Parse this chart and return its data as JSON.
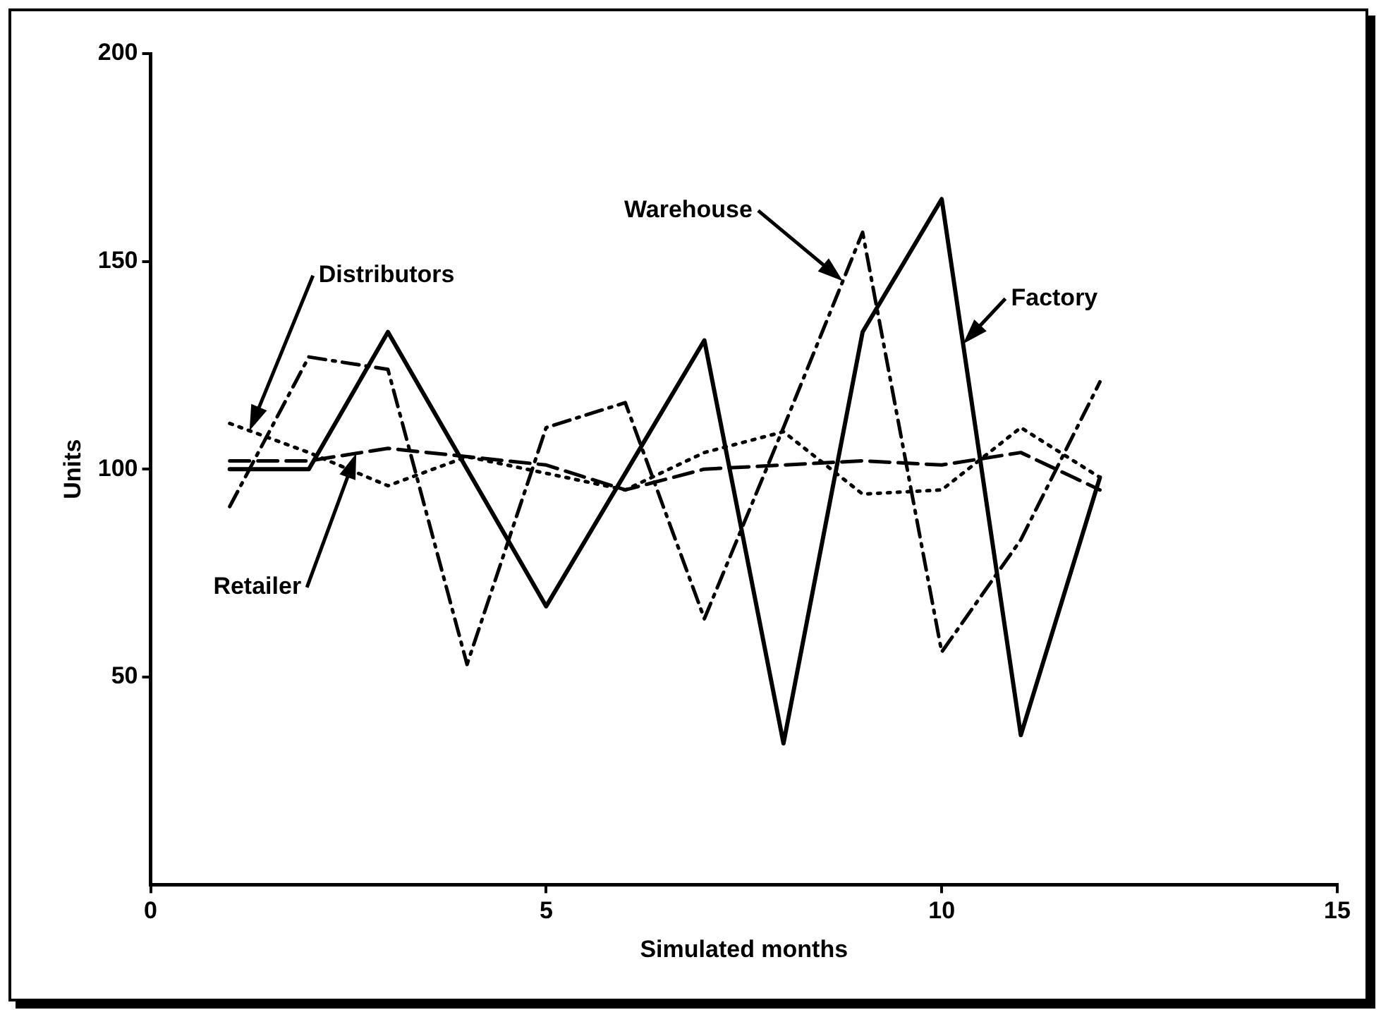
{
  "chart_data": {
    "type": "line",
    "xlabel": "Simulated months",
    "ylabel": "Units",
    "xlim": [
      0,
      15
    ],
    "xticks": [
      0,
      5,
      10,
      15
    ],
    "ylim": [
      0,
      200
    ],
    "yticks": [
      50,
      100,
      150,
      200
    ],
    "grid": false,
    "legend": false,
    "marker": "none",
    "x": [
      1,
      2,
      3,
      4,
      5,
      6,
      7,
      8,
      9,
      10,
      11,
      12
    ],
    "series": [
      {
        "name": "Factory",
        "color": "#000000",
        "line_style": "solid",
        "values": [
          100,
          100,
          133,
          100,
          67,
          99,
          131,
          34,
          133,
          165,
          36,
          98
        ]
      },
      {
        "name": "Warehouse",
        "color": "#000000",
        "line_style": "dashdot",
        "values": [
          91,
          127,
          124,
          53,
          110,
          116,
          64,
          110,
          157,
          56,
          83,
          121
        ]
      },
      {
        "name": "Distributors",
        "color": "#000000",
        "line_style": "dotted",
        "values": [
          111,
          104,
          96,
          103,
          99,
          95,
          104,
          109,
          94,
          95,
          110,
          98
        ]
      },
      {
        "name": "Retailer",
        "color": "#000000",
        "line_style": "dashed",
        "values": [
          102,
          102,
          105,
          103,
          101,
          95,
          100,
          101,
          102,
          101,
          104,
          95
        ]
      }
    ]
  }
}
